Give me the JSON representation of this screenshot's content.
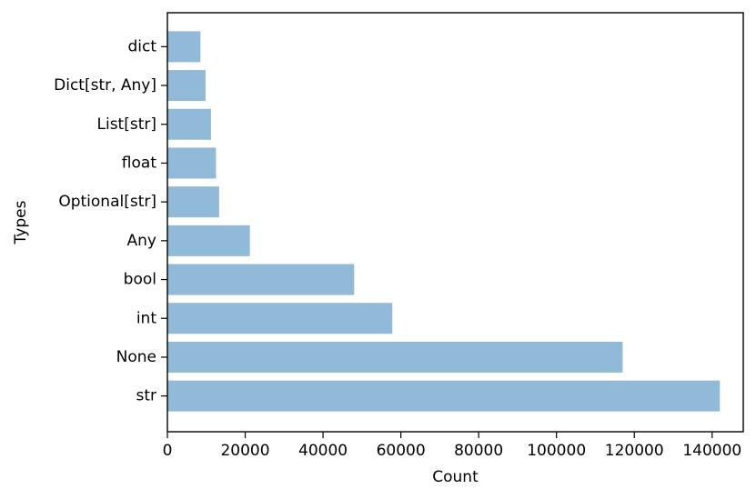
{
  "chart_data": {
    "type": "bar",
    "orientation": "horizontal",
    "categories": [
      "dict",
      "Dict[str, Any]",
      "List[str]",
      "float",
      "Optional[str]",
      "Any",
      "bool",
      "int",
      "None",
      "str"
    ],
    "values": [
      8500,
      9800,
      11200,
      12500,
      13300,
      21200,
      48000,
      57800,
      117000,
      142000
    ],
    "title": "",
    "xlabel": "Count",
    "ylabel": "Types",
    "xlim": [
      0,
      148000
    ],
    "xticks": [
      0,
      20000,
      40000,
      60000,
      80000,
      100000,
      120000,
      140000
    ],
    "xtick_labels": [
      "0",
      "20000",
      "40000",
      "60000",
      "80000",
      "100000",
      "120000",
      "140000"
    ],
    "grid": false,
    "legend": "none",
    "bar_color": "#91bad9"
  }
}
